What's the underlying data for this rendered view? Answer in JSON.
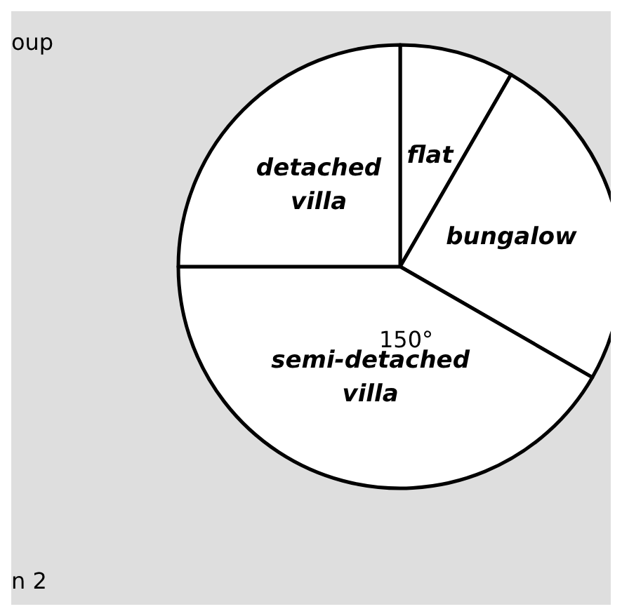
{
  "chart_data": {
    "type": "pie",
    "categories": [
      "flat",
      "bungalow",
      "semi-detached villa",
      "detached villa"
    ],
    "values": [
      8.33,
      25,
      41.67,
      25
    ],
    "colors": [
      "#ffffff",
      "#ffffff",
      "#ffffff",
      "#ffffff"
    ],
    "annotations": [
      "150°",
      "oup",
      "n 2"
    ]
  }
}
